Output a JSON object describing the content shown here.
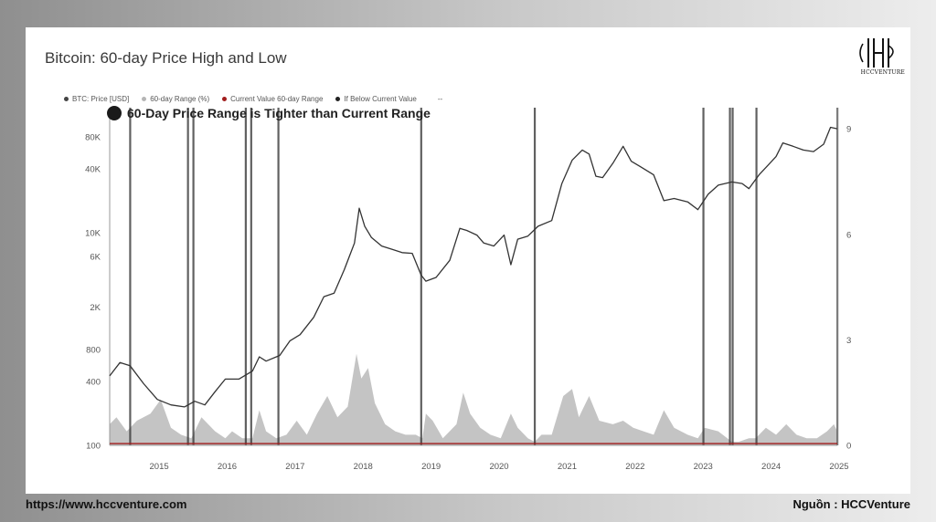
{
  "header": {
    "title": "Bitcoin: 60-day Price High and Low",
    "logo_text": "HCCVENTURE"
  },
  "legend": [
    {
      "label": "BTC: Price [USD]",
      "color": "#444444"
    },
    {
      "label": "60-day Range (%)",
      "color": "#b5b5b5"
    },
    {
      "label": "Current Value 60-day Range",
      "color": "#a11d1d"
    },
    {
      "label": "If Below Current Value",
      "color": "#222222"
    },
    {
      "label": "--",
      "color": "#ffffff"
    }
  ],
  "annotation": "60-Day Price Range is Tighter than Current Range",
  "footer": {
    "url": "https://www.hccventure.com",
    "source": "Nguồn : HCCVenture"
  },
  "colors": {
    "price_line": "#333333",
    "range_area": "#c4c4c4",
    "current_value_line": "#a11d1d",
    "highlight_bar": "#3a3a3a"
  },
  "chart_data": {
    "type": "line",
    "title": "Bitcoin: 60-day Price High and Low",
    "x_ticks": [
      "2015",
      "2016",
      "2017",
      "2018",
      "2019",
      "2020",
      "2021",
      "2022",
      "2023",
      "2024",
      "2025"
    ],
    "y_left_ticks": [
      {
        "label": "100",
        "value": 100
      },
      {
        "label": "400",
        "value": 400
      },
      {
        "label": "800",
        "value": 800
      },
      {
        "label": "2K",
        "value": 2000
      },
      {
        "label": "6K",
        "value": 6000
      },
      {
        "label": "10K",
        "value": 10000
      },
      {
        "label": "40K",
        "value": 40000
      },
      {
        "label": "80K",
        "value": 80000
      }
    ],
    "y_right_ticks": [
      {
        "label": "0",
        "value": 0
      },
      {
        "label": "3",
        "value": 3
      },
      {
        "label": "6",
        "value": 6
      },
      {
        "label": "9",
        "value": 9
      }
    ],
    "y_left_scale": "log",
    "y_left_lim": [
      100,
      150000
    ],
    "y_right_lim": [
      0,
      9.6
    ],
    "x_lim": [
      2014.3,
      2025.0
    ],
    "series": [
      {
        "name": "BTC: Price [USD]",
        "points": [
          [
            2014.3,
            450
          ],
          [
            2014.45,
            600
          ],
          [
            2014.6,
            560
          ],
          [
            2014.8,
            380
          ],
          [
            2015.0,
            270
          ],
          [
            2015.2,
            240
          ],
          [
            2015.4,
            230
          ],
          [
            2015.55,
            260
          ],
          [
            2015.7,
            240
          ],
          [
            2015.85,
            320
          ],
          [
            2016.0,
            420
          ],
          [
            2016.2,
            420
          ],
          [
            2016.4,
            500
          ],
          [
            2016.5,
            680
          ],
          [
            2016.6,
            620
          ],
          [
            2016.8,
            700
          ],
          [
            2016.95,
            960
          ],
          [
            2017.1,
            1100
          ],
          [
            2017.3,
            1600
          ],
          [
            2017.45,
            2500
          ],
          [
            2017.6,
            2700
          ],
          [
            2017.75,
            4500
          ],
          [
            2017.9,
            8000
          ],
          [
            2017.97,
            17000
          ],
          [
            2018.05,
            11500
          ],
          [
            2018.15,
            9000
          ],
          [
            2018.3,
            7500
          ],
          [
            2018.45,
            7000
          ],
          [
            2018.6,
            6500
          ],
          [
            2018.75,
            6400
          ],
          [
            2018.88,
            4000
          ],
          [
            2018.95,
            3500
          ],
          [
            2019.1,
            3800
          ],
          [
            2019.3,
            5500
          ],
          [
            2019.45,
            11000
          ],
          [
            2019.55,
            10500
          ],
          [
            2019.7,
            9500
          ],
          [
            2019.8,
            8000
          ],
          [
            2019.95,
            7500
          ],
          [
            2020.1,
            9500
          ],
          [
            2020.2,
            5000
          ],
          [
            2020.3,
            8700
          ],
          [
            2020.45,
            9300
          ],
          [
            2020.6,
            11500
          ],
          [
            2020.8,
            13000
          ],
          [
            2020.95,
            29000
          ],
          [
            2021.1,
            48000
          ],
          [
            2021.25,
            60000
          ],
          [
            2021.35,
            55000
          ],
          [
            2021.45,
            34000
          ],
          [
            2021.55,
            33000
          ],
          [
            2021.7,
            45000
          ],
          [
            2021.85,
            65000
          ],
          [
            2021.97,
            47000
          ],
          [
            2022.1,
            42000
          ],
          [
            2022.3,
            35000
          ],
          [
            2022.45,
            20000
          ],
          [
            2022.6,
            21000
          ],
          [
            2022.8,
            19500
          ],
          [
            2022.95,
            16500
          ],
          [
            2023.1,
            23000
          ],
          [
            2023.25,
            28000
          ],
          [
            2023.45,
            30000
          ],
          [
            2023.6,
            29000
          ],
          [
            2023.7,
            26000
          ],
          [
            2023.85,
            35000
          ],
          [
            2023.98,
            43000
          ],
          [
            2024.1,
            52000
          ],
          [
            2024.2,
            70000
          ],
          [
            2024.35,
            65000
          ],
          [
            2024.5,
            60000
          ],
          [
            2024.65,
            58000
          ],
          [
            2024.8,
            68000
          ],
          [
            2024.9,
            98000
          ],
          [
            2025.0,
            95000
          ]
        ]
      },
      {
        "name": "60-day Range (%)",
        "points": [
          [
            2014.3,
            0.6
          ],
          [
            2014.4,
            0.8
          ],
          [
            2014.55,
            0.4
          ],
          [
            2014.7,
            0.7
          ],
          [
            2014.9,
            0.9
          ],
          [
            2015.05,
            1.3
          ],
          [
            2015.2,
            0.5
          ],
          [
            2015.35,
            0.3
          ],
          [
            2015.5,
            0.2
          ],
          [
            2015.65,
            0.8
          ],
          [
            2015.85,
            0.4
          ],
          [
            2016.0,
            0.2
          ],
          [
            2016.1,
            0.4
          ],
          [
            2016.25,
            0.2
          ],
          [
            2016.4,
            0.2
          ],
          [
            2016.5,
            1.0
          ],
          [
            2016.6,
            0.4
          ],
          [
            2016.75,
            0.2
          ],
          [
            2016.9,
            0.3
          ],
          [
            2017.05,
            0.7
          ],
          [
            2017.2,
            0.3
          ],
          [
            2017.35,
            0.9
          ],
          [
            2017.5,
            1.4
          ],
          [
            2017.65,
            0.8
          ],
          [
            2017.8,
            1.1
          ],
          [
            2017.93,
            2.6
          ],
          [
            2018.0,
            1.9
          ],
          [
            2018.1,
            2.2
          ],
          [
            2018.2,
            1.2
          ],
          [
            2018.35,
            0.6
          ],
          [
            2018.5,
            0.4
          ],
          [
            2018.65,
            0.3
          ],
          [
            2018.8,
            0.3
          ],
          [
            2018.9,
            0.2
          ],
          [
            2018.95,
            0.9
          ],
          [
            2019.05,
            0.7
          ],
          [
            2019.2,
            0.2
          ],
          [
            2019.4,
            0.6
          ],
          [
            2019.5,
            1.5
          ],
          [
            2019.6,
            0.9
          ],
          [
            2019.75,
            0.5
          ],
          [
            2019.9,
            0.3
          ],
          [
            2020.05,
            0.2
          ],
          [
            2020.2,
            0.9
          ],
          [
            2020.3,
            0.5
          ],
          [
            2020.45,
            0.2
          ],
          [
            2020.55,
            0.1
          ],
          [
            2020.65,
            0.3
          ],
          [
            2020.8,
            0.3
          ],
          [
            2020.97,
            1.4
          ],
          [
            2021.1,
            1.6
          ],
          [
            2021.2,
            0.8
          ],
          [
            2021.35,
            1.4
          ],
          [
            2021.5,
            0.7
          ],
          [
            2021.7,
            0.6
          ],
          [
            2021.85,
            0.7
          ],
          [
            2022.0,
            0.5
          ],
          [
            2022.15,
            0.4
          ],
          [
            2022.3,
            0.3
          ],
          [
            2022.45,
            1.0
          ],
          [
            2022.6,
            0.5
          ],
          [
            2022.8,
            0.3
          ],
          [
            2022.95,
            0.2
          ],
          [
            2023.05,
            0.5
          ],
          [
            2023.25,
            0.4
          ],
          [
            2023.45,
            0.1
          ],
          [
            2023.55,
            0.1
          ],
          [
            2023.7,
            0.2
          ],
          [
            2023.8,
            0.2
          ],
          [
            2023.95,
            0.5
          ],
          [
            2024.1,
            0.3
          ],
          [
            2024.25,
            0.6
          ],
          [
            2024.4,
            0.3
          ],
          [
            2024.55,
            0.2
          ],
          [
            2024.7,
            0.2
          ],
          [
            2024.85,
            0.4
          ],
          [
            2024.95,
            0.6
          ],
          [
            2025.0,
            0.4
          ]
        ]
      },
      {
        "name": "Current Value 60-day Range",
        "points": [
          [
            2014.3,
            0.05
          ],
          [
            2025.0,
            0.05
          ]
        ]
      }
    ],
    "highlight_dates": [
      2014.6,
      2015.45,
      2015.53,
      2016.3,
      2016.38,
      2016.78,
      2018.88,
      2020.55,
      2023.03,
      2023.42,
      2023.46,
      2023.81,
      2025.0
    ],
    "grid": false,
    "legend_position": "top-left"
  }
}
